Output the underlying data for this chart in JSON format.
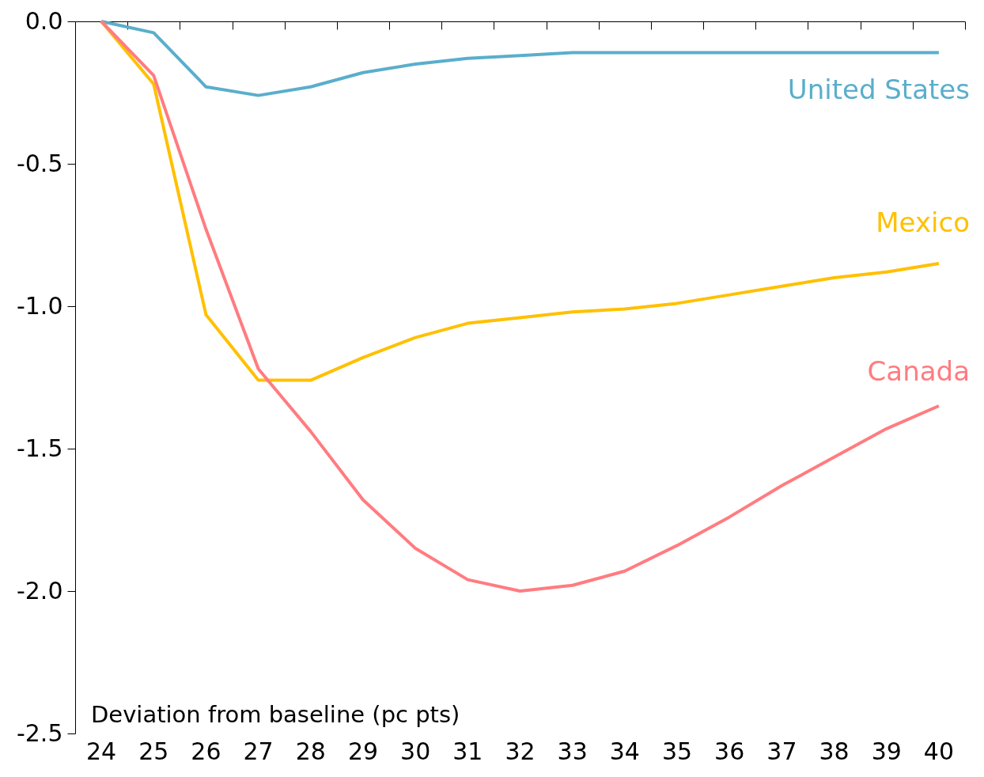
{
  "chart_data": {
    "type": "line",
    "ylabel": "Deviation from baseline (pc pts)",
    "categories": [
      "24",
      "25",
      "26",
      "27",
      "28",
      "29",
      "30",
      "31",
      "32",
      "33",
      "34",
      "35",
      "36",
      "37",
      "38",
      "39",
      "40"
    ],
    "series": [
      {
        "name": "United States",
        "color": "#5aaecb",
        "values": [
          0,
          -0.04,
          -0.23,
          -0.26,
          -0.23,
          -0.18,
          -0.15,
          -0.13,
          -0.12,
          -0.11,
          -0.11,
          -0.11,
          -0.11,
          -0.11,
          -0.11,
          -0.11,
          -0.11
        ]
      },
      {
        "name": "Mexico",
        "color": "#ffc000",
        "values": [
          0,
          -0.22,
          -1.03,
          -1.26,
          -1.26,
          -1.18,
          -1.11,
          -1.06,
          -1.04,
          -1.02,
          -1.01,
          -0.99,
          -0.96,
          -0.93,
          -0.9,
          -0.88,
          -0.85
        ]
      },
      {
        "name": "Canada",
        "color": "#ff7c80",
        "values": [
          0,
          -0.19,
          -0.73,
          -1.22,
          -1.44,
          -1.68,
          -1.85,
          -1.96,
          -2.0,
          -1.98,
          -1.93,
          -1.84,
          -1.74,
          -1.63,
          -1.53,
          -1.43,
          -1.35
        ]
      }
    ],
    "ylim": [
      -2.5,
      0
    ],
    "yticks": [
      {
        "value": 0,
        "label": "0.0"
      },
      -0.5,
      {
        "value": -1,
        "label": "-1.0"
      },
      -1.5,
      {
        "value": -2,
        "label": "-2.0"
      },
      -2.5
    ],
    "grid": false,
    "legend": false,
    "marker": "none",
    "line_style": "solid"
  }
}
